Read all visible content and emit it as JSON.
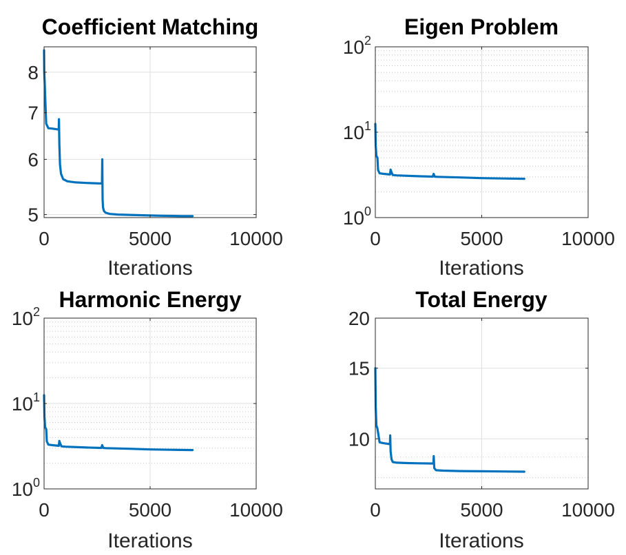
{
  "figure": {
    "line_color": "#0072BD"
  },
  "chart_data": [
    {
      "type": "line",
      "title": "Coefficient Matching",
      "xlabel": "Iterations",
      "ylabel": "",
      "yscale": "log",
      "grid": true,
      "xlim": [
        0,
        10000
      ],
      "ylim": [
        4.95,
        8.7
      ],
      "xticks": [
        0,
        5000,
        10000
      ],
      "xticklabels": [
        "0",
        "5000",
        "10000"
      ],
      "yticks": [
        5,
        6,
        7,
        8
      ],
      "yticklabels": [
        "5",
        "6",
        "7",
        "8"
      ],
      "series": [
        {
          "x": [
            0,
            10,
            30,
            60,
            100,
            200,
            400,
            690,
            700,
            720,
            750,
            800,
            900,
            1100,
            1500,
            2000,
            2700,
            2730,
            2745,
            2760,
            2780,
            2820,
            2900,
            3100,
            3500,
            4500,
            5500,
            6500,
            7000
          ],
          "y": [
            8.6,
            8.0,
            7.75,
            7.3,
            6.75,
            6.65,
            6.64,
            6.62,
            6.85,
            6.3,
            5.9,
            5.72,
            5.62,
            5.58,
            5.56,
            5.55,
            5.54,
            5.54,
            6.0,
            5.25,
            5.12,
            5.06,
            5.03,
            5.01,
            5.0,
            4.99,
            4.98,
            4.975,
            4.975
          ]
        }
      ]
    },
    {
      "type": "line",
      "title": "Eigen Problem",
      "xlabel": "Iterations",
      "ylabel": "",
      "yscale": "log",
      "grid": true,
      "xlim": [
        0,
        10000
      ],
      "ylim": [
        1,
        100
      ],
      "xticks": [
        0,
        5000,
        10000
      ],
      "xticklabels": [
        "0",
        "5000",
        "10000"
      ],
      "yticks": [
        1,
        10,
        100
      ],
      "yticklabels": [
        {
          "base": "10",
          "exp": "0"
        },
        {
          "base": "10",
          "exp": "1"
        },
        {
          "base": "10",
          "exp": "2"
        }
      ],
      "series": [
        {
          "x": [
            0,
            20,
            50,
            100,
            130,
            200,
            400,
            690,
            720,
            760,
            820,
            1000,
            2000,
            2700,
            2740,
            2790,
            2900,
            4000,
            5000,
            6000,
            7000
          ],
          "y": [
            12.5,
            7.0,
            5.3,
            5.0,
            3.6,
            3.3,
            3.25,
            3.2,
            3.65,
            3.4,
            3.15,
            3.12,
            3.05,
            3.02,
            3.25,
            3.02,
            3.0,
            2.95,
            2.9,
            2.87,
            2.85
          ]
        }
      ]
    },
    {
      "type": "line",
      "title": "Harmonic Energy",
      "xlabel": "Iterations",
      "ylabel": "",
      "yscale": "log",
      "grid": true,
      "xlim": [
        0,
        10000
      ],
      "ylim": [
        1,
        100
      ],
      "xticks": [
        0,
        5000,
        10000
      ],
      "xticklabels": [
        "0",
        "5000",
        "10000"
      ],
      "yticks": [
        1,
        10,
        100
      ],
      "yticklabels": [
        {
          "base": "10",
          "exp": "0"
        },
        {
          "base": "10",
          "exp": "1"
        },
        {
          "base": "10",
          "exp": "2"
        }
      ],
      "series": [
        {
          "x": [
            0,
            20,
            50,
            100,
            130,
            200,
            400,
            690,
            720,
            760,
            820,
            1000,
            2000,
            2700,
            2740,
            2790,
            2900,
            4000,
            5000,
            6000,
            7000
          ],
          "y": [
            12.5,
            7.0,
            5.3,
            5.0,
            3.6,
            3.3,
            3.25,
            3.2,
            3.65,
            3.4,
            3.15,
            3.12,
            3.05,
            3.02,
            3.25,
            3.02,
            3.0,
            2.95,
            2.9,
            2.87,
            2.85
          ]
        }
      ]
    },
    {
      "type": "line",
      "title": "Total Energy",
      "xlabel": "Iterations",
      "ylabel": "",
      "yscale": "log",
      "grid": true,
      "xlim": [
        0,
        10000
      ],
      "ylim": [
        7.5,
        20
      ],
      "xticks": [
        0,
        5000,
        10000
      ],
      "xticklabels": [
        "0",
        "5000",
        "10000"
      ],
      "yticks": [
        10,
        15,
        20
      ],
      "yticklabels": [
        "10",
        "15",
        "20"
      ],
      "series": [
        {
          "x": [
            0,
            20,
            50,
            100,
            200,
            400,
            690,
            700,
            720,
            760,
            820,
            1000,
            1500,
            2000,
            2700,
            2730,
            2745,
            2770,
            2850,
            3200,
            4000,
            5000,
            6000,
            7000
          ],
          "y": [
            15.0,
            12.0,
            10.8,
            10.6,
            9.8,
            9.75,
            9.7,
            10.2,
            9.3,
            8.9,
            8.75,
            8.72,
            8.7,
            8.69,
            8.68,
            8.68,
            9.05,
            8.45,
            8.35,
            8.33,
            8.31,
            8.3,
            8.29,
            8.28
          ]
        }
      ]
    }
  ]
}
